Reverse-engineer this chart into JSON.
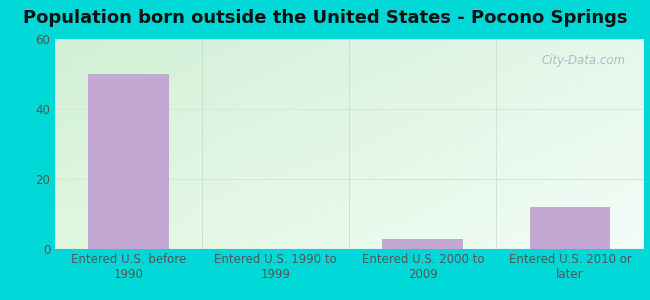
{
  "title": "Population born outside the United States - Pocono Springs",
  "categories": [
    "Entered U.S. before\n1990",
    "Entered U.S. 1990 to\n1999",
    "Entered U.S. 2000 to\n2009",
    "Entered U.S. 2010 or\nlater"
  ],
  "values": [
    50,
    0,
    3,
    12
  ],
  "bar_color": "#c4a8d4",
  "ylim": [
    0,
    60
  ],
  "yticks": [
    0,
    20,
    40,
    60
  ],
  "background_outer": "#00d8d8",
  "grid_color": "#d8e8d8",
  "title_fontsize": 13,
  "tick_fontsize": 8.5,
  "watermark": "City-Data.com",
  "bg_top_right": "#f0faf8",
  "bg_bottom_left": "#d8f0d8"
}
